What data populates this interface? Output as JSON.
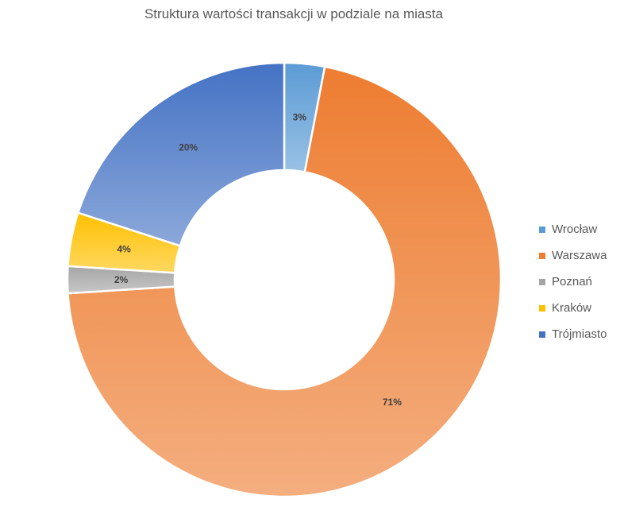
{
  "chart_data": {
    "type": "pie",
    "variant": "donut",
    "title": "Struktura wartości transakcji w podziale na miasta",
    "categories": [
      "Wrocław",
      "Warszawa",
      "Poznań",
      "Kraków",
      "Trójmiasto"
    ],
    "values": [
      3,
      71,
      2,
      4,
      20
    ],
    "labels": [
      "3%",
      "71%",
      "2%",
      "4%",
      "20%"
    ],
    "colors": [
      "#5B9BD5",
      "#ED7D31",
      "#A5A5A5",
      "#FFC000",
      "#4472C4"
    ],
    "legend_position": "right"
  }
}
